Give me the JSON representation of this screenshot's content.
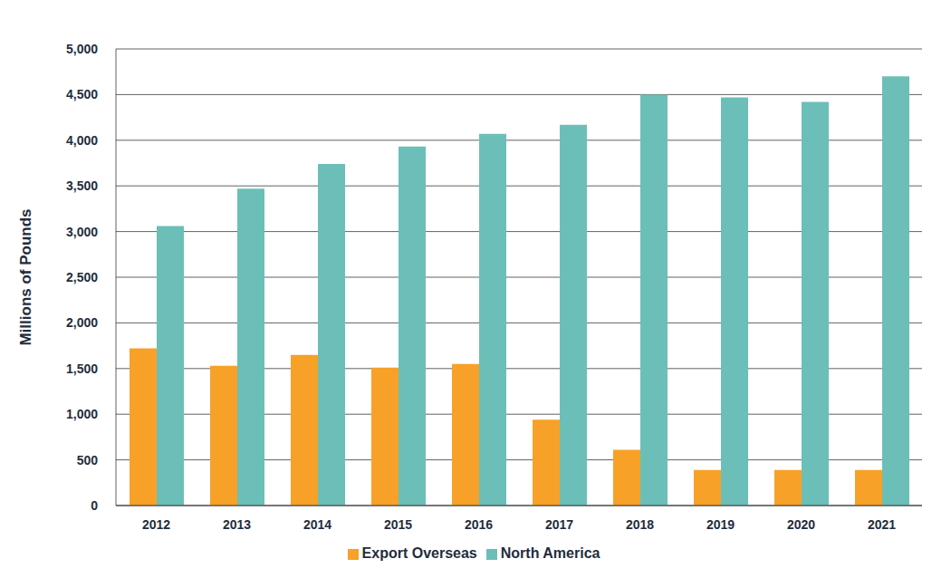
{
  "chart_data": {
    "type": "bar",
    "y_label": "Millions of Pounds",
    "categories": [
      "2012",
      "2013",
      "2014",
      "2015",
      "2016",
      "2017",
      "2018",
      "2019",
      "2020",
      "2021"
    ],
    "series": [
      {
        "name": "Export Overseas",
        "color": "#f7a128",
        "values": [
          1720,
          1530,
          1650,
          1510,
          1550,
          940,
          610,
          390,
          390,
          390
        ]
      },
      {
        "name": "North America",
        "color": "#6bbfb8",
        "values": [
          3060,
          3470,
          3740,
          3930,
          4070,
          4170,
          4500,
          4470,
          4420,
          4700
        ]
      }
    ],
    "ylim": [
      0,
      5000
    ],
    "yticks": [
      0,
      500,
      {
        "value": 1000,
        "label": "1,000"
      },
      {
        "value": 1500,
        "label": "1,500"
      },
      {
        "value": 2000,
        "label": "2,000"
      },
      {
        "value": 2500,
        "label": "2,500"
      },
      {
        "value": 3000,
        "label": "3,000"
      },
      {
        "value": 3500,
        "label": "3,500"
      },
      {
        "value": 4000,
        "label": "4,000"
      },
      {
        "value": 4500,
        "label": "4,500"
      },
      {
        "value": 5000,
        "label": "5,000"
      }
    ],
    "grid": true,
    "legend": "bottom"
  }
}
